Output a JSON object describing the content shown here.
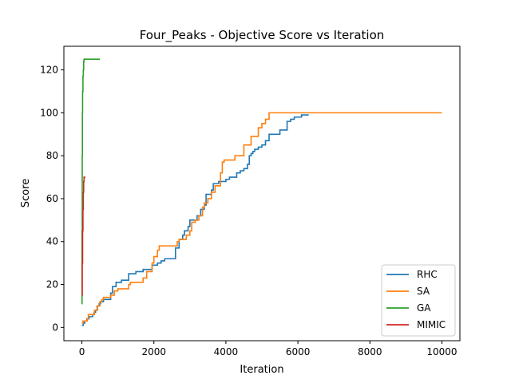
{
  "chart_data": {
    "type": "line",
    "title": "Four_Peaks - Objective Score vs Iteration",
    "xlabel": "Iteration",
    "ylabel": "Score",
    "xlim": [
      -500,
      10500
    ],
    "ylim": [
      -6.2,
      131
    ],
    "x_ticks": [
      0,
      2000,
      4000,
      6000,
      8000,
      10000
    ],
    "y_ticks": [
      0,
      20,
      40,
      60,
      80,
      100,
      120
    ],
    "grid": false,
    "legend_position": "lower-right",
    "series": [
      {
        "name": "RHC",
        "color": "#1f77b4",
        "step": true,
        "points": [
          [
            0,
            1
          ],
          [
            40,
            2
          ],
          [
            80,
            3
          ],
          [
            140,
            4
          ],
          [
            200,
            5
          ],
          [
            300,
            6
          ],
          [
            340,
            7
          ],
          [
            380,
            8
          ],
          [
            430,
            10
          ],
          [
            480,
            11
          ],
          [
            520,
            12
          ],
          [
            600,
            13
          ],
          [
            800,
            16
          ],
          [
            850,
            19
          ],
          [
            950,
            21
          ],
          [
            1100,
            22
          ],
          [
            1300,
            25
          ],
          [
            1500,
            26
          ],
          [
            1700,
            27
          ],
          [
            1950,
            29
          ],
          [
            2100,
            30
          ],
          [
            2200,
            31
          ],
          [
            2300,
            32
          ],
          [
            2600,
            37
          ],
          [
            2700,
            41
          ],
          [
            2800,
            43
          ],
          [
            2850,
            45
          ],
          [
            2950,
            47
          ],
          [
            3000,
            50
          ],
          [
            3200,
            52
          ],
          [
            3300,
            55
          ],
          [
            3400,
            57
          ],
          [
            3450,
            62
          ],
          [
            3600,
            64
          ],
          [
            3650,
            67
          ],
          [
            3800,
            68
          ],
          [
            4000,
            69
          ],
          [
            4100,
            70
          ],
          [
            4300,
            72
          ],
          [
            4400,
            73
          ],
          [
            4500,
            74
          ],
          [
            4600,
            76
          ],
          [
            4650,
            80
          ],
          [
            4700,
            81
          ],
          [
            4750,
            82
          ],
          [
            4800,
            83
          ],
          [
            4900,
            84
          ],
          [
            5000,
            85
          ],
          [
            5100,
            87
          ],
          [
            5200,
            90
          ],
          [
            5500,
            92
          ],
          [
            5700,
            96
          ],
          [
            5800,
            97
          ],
          [
            5900,
            98
          ],
          [
            6100,
            99
          ],
          [
            6300,
            99
          ]
        ]
      },
      {
        "name": "SA",
        "color": "#ff7f0e",
        "step": true,
        "points": [
          [
            0,
            2
          ],
          [
            30,
            3
          ],
          [
            150,
            4
          ],
          [
            180,
            6
          ],
          [
            350,
            8
          ],
          [
            420,
            10
          ],
          [
            500,
            12
          ],
          [
            550,
            13
          ],
          [
            600,
            14
          ],
          [
            800,
            15
          ],
          [
            900,
            17
          ],
          [
            1000,
            18
          ],
          [
            1300,
            20
          ],
          [
            1350,
            21
          ],
          [
            1700,
            23
          ],
          [
            1800,
            26
          ],
          [
            1950,
            30
          ],
          [
            2000,
            33
          ],
          [
            2100,
            36
          ],
          [
            2150,
            38
          ],
          [
            2600,
            38
          ],
          [
            2650,
            40
          ],
          [
            2700,
            41
          ],
          [
            2900,
            43
          ],
          [
            3000,
            45
          ],
          [
            3050,
            49
          ],
          [
            3150,
            50
          ],
          [
            3250,
            52
          ],
          [
            3350,
            56
          ],
          [
            3400,
            58
          ],
          [
            3500,
            60
          ],
          [
            3600,
            63
          ],
          [
            3700,
            66
          ],
          [
            3850,
            72
          ],
          [
            3900,
            77
          ],
          [
            3950,
            78
          ],
          [
            4250,
            80
          ],
          [
            4500,
            85
          ],
          [
            4600,
            85
          ],
          [
            4700,
            89
          ],
          [
            4900,
            93
          ],
          [
            5000,
            95
          ],
          [
            5100,
            97
          ],
          [
            5200,
            100
          ],
          [
            10000,
            100
          ]
        ]
      },
      {
        "name": "GA",
        "color": "#2ca02c",
        "step": true,
        "points": [
          [
            0,
            11
          ],
          [
            5,
            45
          ],
          [
            10,
            80
          ],
          [
            15,
            100
          ],
          [
            20,
            110
          ],
          [
            30,
            117
          ],
          [
            40,
            120
          ],
          [
            50,
            124
          ],
          [
            60,
            125
          ],
          [
            500,
            125
          ]
        ]
      },
      {
        "name": "MIMIC",
        "color": "#d62728",
        "step": true,
        "points": [
          [
            0,
            15
          ],
          [
            10,
            30
          ],
          [
            20,
            45
          ],
          [
            30,
            55
          ],
          [
            40,
            63
          ],
          [
            50,
            68
          ],
          [
            60,
            70
          ],
          [
            100,
            70
          ]
        ]
      }
    ]
  }
}
